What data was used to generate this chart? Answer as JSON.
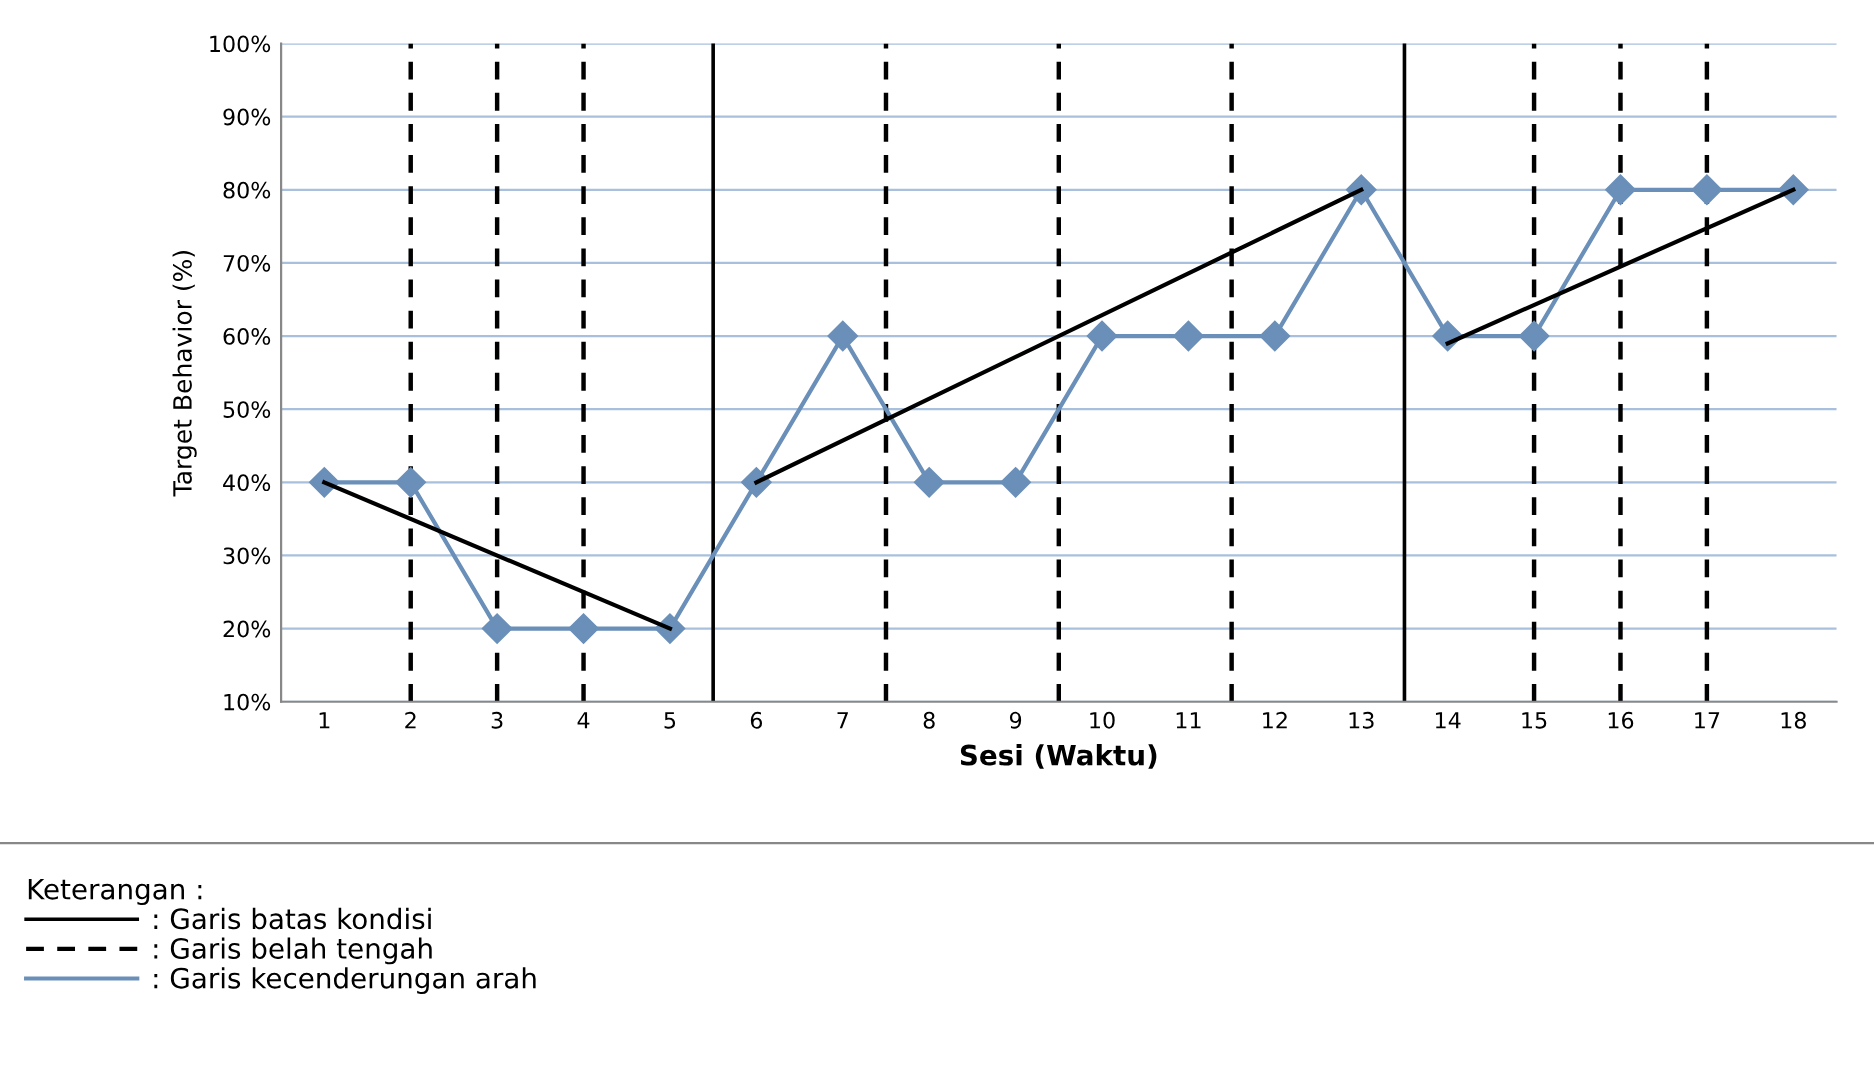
{
  "chart_data": {
    "type": "line",
    "xlabel": "Sesi (Waktu)",
    "ylabel": "Target Behavior (%)",
    "legend_title": "Keterangan :",
    "x": [
      1,
      2,
      3,
      4,
      5,
      6,
      7,
      8,
      9,
      10,
      11,
      12,
      13,
      14,
      15,
      16,
      17,
      18
    ],
    "xlim": [
      0.5,
      18.5
    ],
    "xticks": [
      1,
      2,
      3,
      4,
      5,
      6,
      7,
      8,
      9,
      10,
      11,
      12,
      13,
      14,
      15,
      16,
      17,
      18
    ],
    "ylim": [
      10,
      100
    ],
    "yticks": [
      {
        "value": 10,
        "label": "10%"
      },
      {
        "value": 20,
        "label": "20%"
      },
      {
        "value": 30,
        "label": "30%"
      },
      {
        "value": 40,
        "label": "40%"
      },
      {
        "value": 50,
        "label": "50%"
      },
      {
        "value": 60,
        "label": "60%"
      },
      {
        "value": 70,
        "label": "70%"
      },
      {
        "value": 80,
        "label": "80%"
      },
      {
        "value": 90,
        "label": "90%"
      },
      {
        "value": 100,
        "label": "100%"
      }
    ],
    "grid": "y",
    "legend": "bottom left",
    "series": [
      {
        "name": ": Garis kecenderungan arah",
        "color": "#6a8fb8",
        "marker": "diamond",
        "values": [
          40,
          40,
          20,
          20,
          20,
          40,
          60,
          40,
          40,
          60,
          60,
          60,
          80,
          60,
          60,
          80,
          80,
          80
        ]
      },
      {
        "color": "#000000",
        "marker": "none",
        "x": [
          1,
          5
        ],
        "values": [
          40,
          20
        ]
      },
      {
        "color": "#000000",
        "marker": "none",
        "x": [
          6,
          13
        ],
        "values": [
          40,
          80
        ]
      },
      {
        "color": "#000000",
        "marker": "none",
        "x": [
          14,
          18
        ],
        "values": [
          59,
          80
        ]
      }
    ],
    "ref_lines": [
      {
        "axis": "x",
        "value": 5.5,
        "label": ": Garis batas kondisi",
        "color": "#000000",
        "line_style": "solid"
      },
      {
        "axis": "x",
        "value": 13.5,
        "label": null,
        "color": "#000000",
        "line_style": "solid"
      },
      {
        "axis": "x",
        "value": 2,
        "label": ": Garis belah tengah",
        "color": "#000000",
        "line_style": "dashed"
      },
      {
        "axis": "x",
        "value": 3,
        "label": null,
        "color": "#000000",
        "line_style": "dashed"
      },
      {
        "axis": "x",
        "value": 4,
        "label": null,
        "color": "#000000",
        "line_style": "dashed"
      },
      {
        "axis": "x",
        "value": 7.5,
        "label": null,
        "color": "#000000",
        "line_style": "dashed"
      },
      {
        "axis": "x",
        "value": 9.5,
        "label": null,
        "color": "#000000",
        "line_style": "dashed"
      },
      {
        "axis": "x",
        "value": 11.5,
        "label": null,
        "color": "#000000",
        "line_style": "dashed"
      },
      {
        "axis": "x",
        "value": 15,
        "label": null,
        "color": "#000000",
        "line_style": "dashed"
      },
      {
        "axis": "x",
        "value": 16,
        "label": null,
        "color": "#000000",
        "line_style": "dashed"
      },
      {
        "axis": "x",
        "value": 17,
        "label": null,
        "color": "#000000",
        "line_style": "dashed"
      }
    ]
  }
}
